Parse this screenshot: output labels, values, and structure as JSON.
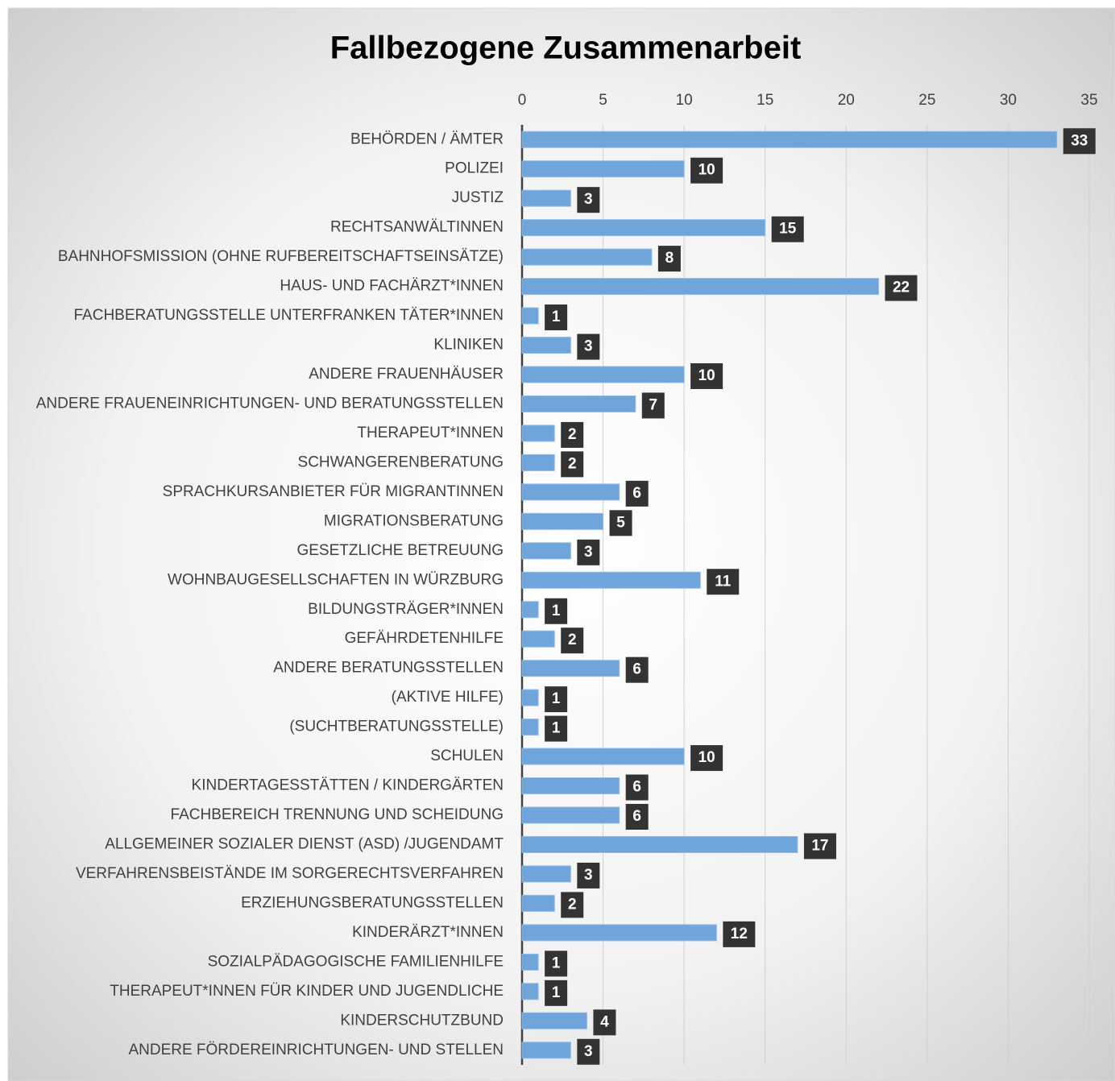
{
  "chart_data": {
    "type": "bar",
    "orientation": "horizontal",
    "title": "Fallbezogene Zusammenarbeit",
    "categories": [
      "BEHÖRDEN / ÄMTER",
      "POLIZEI",
      "JUSTIZ",
      "RECHTSANWÄLTINNEN",
      "BAHNHOFSMISSION (OHNE RUFBEREITSCHAFTSEINSÄTZE)",
      "HAUS- UND FACHÄRZT*INNEN",
      "FACHBERATUNGSSTELLE UNTERFRANKEN TÄTER*INNEN",
      "KLINIKEN",
      "ANDERE FRAUENHÄUSER",
      "ANDERE FRAUENEINRICHTUNGEN- UND BERATUNGSSTELLEN",
      "THERAPEUT*INNEN",
      "SCHWANGERENBERATUNG",
      "SPRACHKURSANBIETER FÜR MIGRANTINNEN",
      "MIGRATIONSBERATUNG",
      "GESETZLICHE BETREUUNG",
      "WOHNBAUGESELLSCHAFTEN IN WÜRZBURG",
      "BILDUNGSTRÄGER*INNEN",
      "GEFÄHRDETENHILFE",
      "ANDERE BERATUNGSSTELLEN",
      "(AKTIVE HILFE)",
      "(SUCHTBERATUNGSSTELLE)",
      "SCHULEN",
      "KINDERTAGESSTÄTTEN / KINDERGÄRTEN",
      "FACHBEREICH TRENNUNG UND SCHEIDUNG",
      "ALLGEMEINER SOZIALER DIENST (ASD) /JUGENDAMT",
      "VERFAHRENSBEISTÄNDE IM SORGERECHTSVERFAHREN",
      "ERZIEHUNGSBERATUNGSSTELLEN",
      "KINDERÄRZT*INNEN",
      "SOZIALPÄDAGOGISCHE FAMILIENHILFE",
      "THERAPEUT*INNEN FÜR KINDER UND JUGENDLICHE",
      "KINDERSCHUTZBUND",
      "ANDERE FÖRDEREINRICHTUNGEN- UND STELLEN"
    ],
    "values": [
      33,
      10,
      3,
      15,
      8,
      22,
      1,
      3,
      10,
      7,
      2,
      2,
      6,
      5,
      3,
      11,
      1,
      2,
      6,
      1,
      1,
      10,
      6,
      6,
      17,
      3,
      2,
      12,
      1,
      1,
      4,
      3
    ],
    "color": "#6fa5da",
    "xlim": [
      0,
      35
    ],
    "xticks": [
      0,
      5,
      10,
      15,
      20,
      25,
      30,
      35
    ],
    "grid": true
  }
}
